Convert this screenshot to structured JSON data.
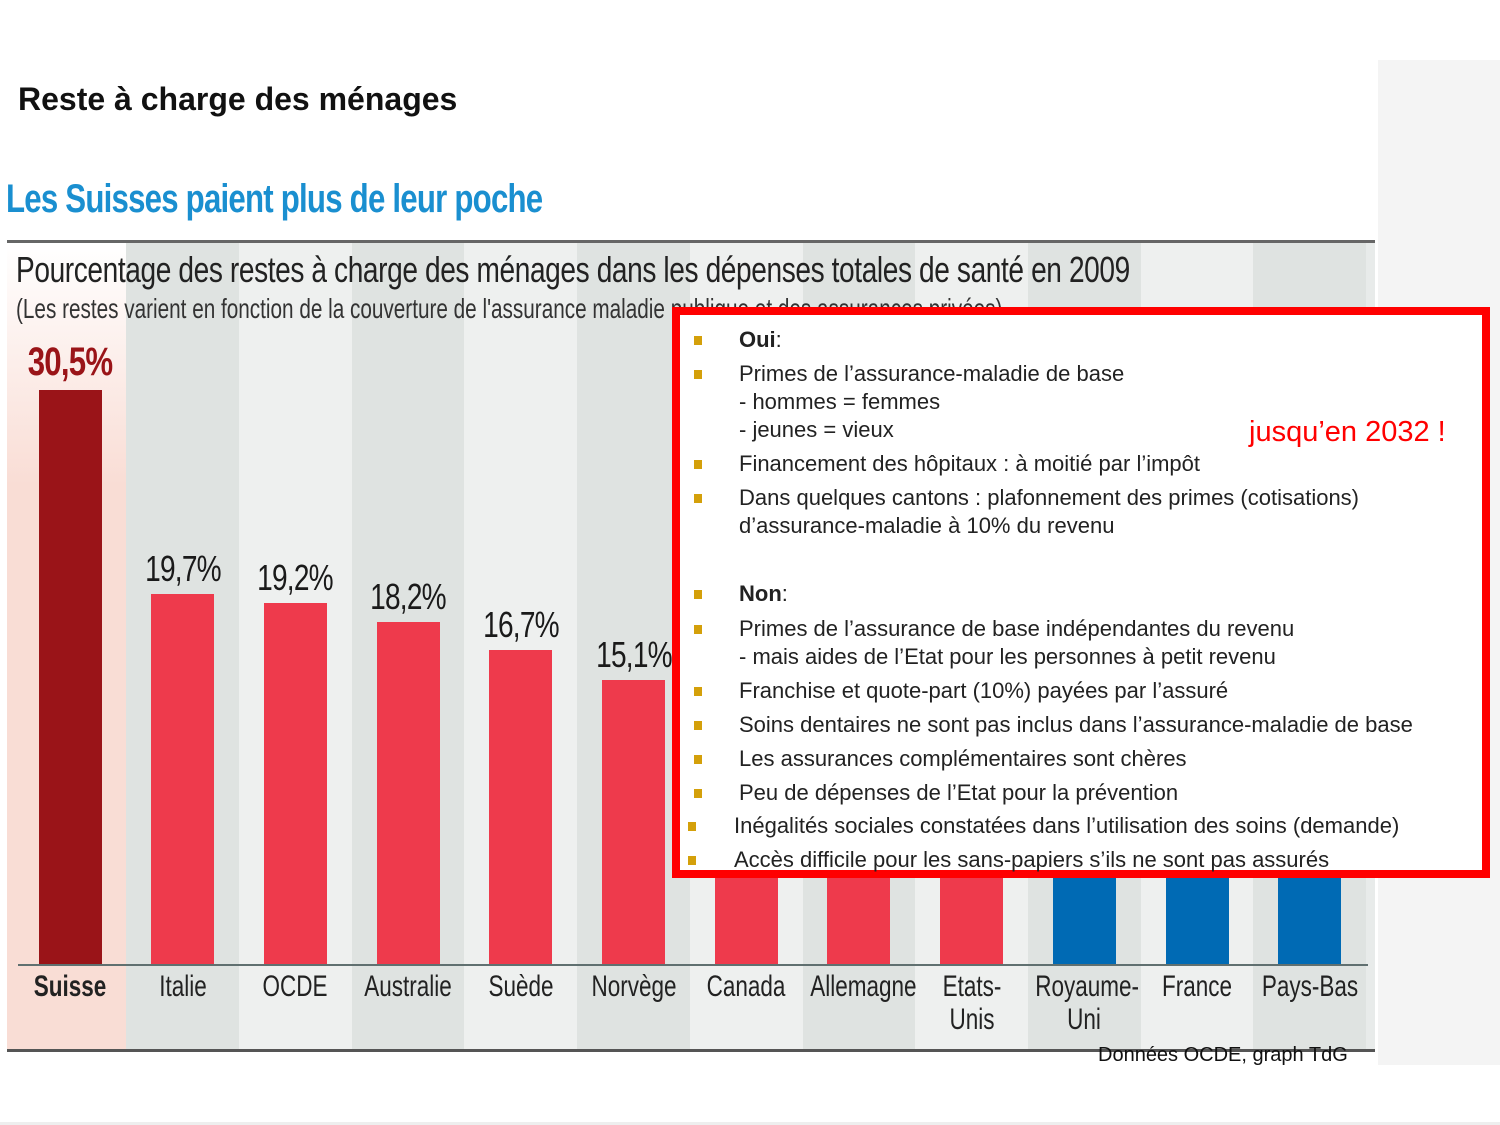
{
  "slide_title": "Reste à charge des ménages",
  "headline": "Les Suisses paient plus de leur poche",
  "chart_data": {
    "type": "bar",
    "title": "Pourcentage des restes à charge des ménages dans les dépenses totales de santé en 2009",
    "subtitle": "(Les restes varient en fonction de la couverture de l'assurance maladie publique et des assurances privées)",
    "categories": [
      "Suisse",
      "Italie",
      "OCDE",
      "Australie",
      "Suède",
      "Norvège",
      "Canada",
      "Allemagne",
      "Etats-Unis",
      "Royaume-Uni",
      "France",
      "Pays-Bas"
    ],
    "values": [
      30.5,
      19.7,
      19.2,
      18.2,
      16.7,
      15.1,
      14.7,
      13.2,
      12.3,
      9.2,
      7.5,
      5.7
    ],
    "value_labels": [
      "30,5%",
      "19,7%",
      "19,2%",
      "18,2%",
      "16,7%",
      "15,1%",
      null,
      null,
      null,
      null,
      null,
      null
    ],
    "xlabel_lines": [
      [
        "Suisse"
      ],
      [
        "Italie"
      ],
      [
        "OCDE"
      ],
      [
        "Australie"
      ],
      [
        "Suède"
      ],
      [
        "Norvège"
      ],
      [
        "Canada"
      ],
      [
        "Allemagne"
      ],
      [
        "Etats-",
        "Unis"
      ],
      [
        "Royaume-",
        "Uni"
      ],
      [
        "France"
      ],
      [
        "Pays-Bas"
      ]
    ],
    "bar_colors": [
      "#9a1418",
      "#ee3a4c",
      "#ee3a4c",
      "#ee3a4c",
      "#ee3a4c",
      "#ee3a4c",
      "#ee3a4c",
      "#ee3a4c",
      "#ee3a4c",
      "#006ab4",
      "#006ab4",
      "#006ab4"
    ],
    "ylim": [
      0,
      30.5
    ],
    "grid": false,
    "source": "Données OCDE, graph TdG"
  },
  "overlay": {
    "items": [
      {
        "text": "Oui",
        "suffix": ":",
        "bold": true,
        "bullet": true
      },
      {
        "text": "Primes de l’assurance-maladie de base",
        "bullet": true
      },
      {
        "text": "- hommes = femmes",
        "bullet": false
      },
      {
        "text": "- jeunes = vieux",
        "bullet": false
      },
      {
        "text": "Financement des hôpitaux : à moitié par l’impôt",
        "bullet": true
      },
      {
        "text": "Dans quelques cantons : plafonnement des primes (cotisations)",
        "bullet": true
      },
      {
        "text": "d’assurance-maladie à 10% du revenu",
        "bullet": false
      },
      {
        "text": "Non",
        "suffix": ":",
        "bold": true,
        "bullet": true
      },
      {
        "text": "Primes de l’assurance de base indépendantes du revenu",
        "bullet": true
      },
      {
        "text": "- mais aides de l’Etat pour les personnes à petit revenu",
        "bullet": false
      },
      {
        "text": "Franchise et quote-part (10%) payées par l’assuré",
        "bullet": true
      },
      {
        "text": "Soins dentaires ne sont pas inclus dans l’assurance-maladie de base",
        "bullet": true
      },
      {
        "text": "Les assurances complémentaires sont chères",
        "bullet": true
      },
      {
        "text": "Peu de dépenses de l’Etat pour la prévention",
        "bullet": true
      },
      {
        "text": "Inégalités sociales constatées dans l’utilisation des soins (demande)",
        "bullet": true
      },
      {
        "text": "Accès difficile pour les sans-papiers s’ils ne sont pas assurés",
        "bullet": true
      }
    ],
    "note": "jusqu’en 2032 !",
    "border_color": "#ff0000",
    "bullet_color": "#d4a00a"
  }
}
